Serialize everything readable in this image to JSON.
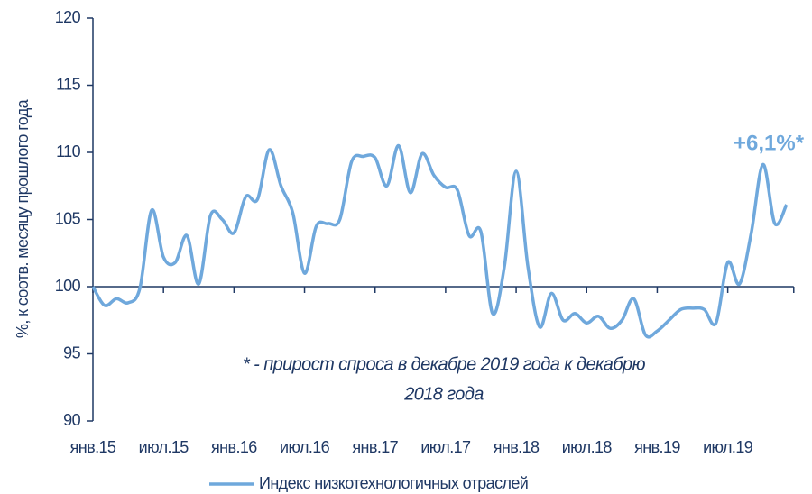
{
  "chart_data": {
    "type": "line",
    "y_label": "%, к соотв. месяцу прошлого года",
    "annotation": "+6,1%*",
    "footnote": [
      "* - прирост спроса в декабре 2019 года к декабрю",
      "2018 года"
    ],
    "categories": [
      "янв.15",
      null,
      null,
      null,
      null,
      null,
      "июл.15",
      null,
      null,
      null,
      null,
      null,
      "янв.16",
      null,
      null,
      null,
      null,
      null,
      "июл.16",
      null,
      null,
      null,
      null,
      null,
      "янв.17",
      null,
      null,
      null,
      null,
      null,
      "июл.17",
      null,
      null,
      null,
      null,
      null,
      "янв.18",
      null,
      null,
      null,
      null,
      null,
      "июл.18",
      null,
      null,
      null,
      null,
      null,
      "янв.19",
      null,
      null,
      null,
      null,
      null,
      "июл.19",
      null,
      null,
      null,
      null,
      null
    ],
    "series": [
      {
        "name": "Индекс низкотехнологичных отраслей",
        "color": "#6fa8dc",
        "values": [
          100,
          98.6,
          99.1,
          98.8,
          99.9,
          105.7,
          102.2,
          101.8,
          103.8,
          100.2,
          105.3,
          105.0,
          104.0,
          106.7,
          106.5,
          110.2,
          107.5,
          105.5,
          101.0,
          104.5,
          104.7,
          105.0,
          109.3,
          109.7,
          109.6,
          107.5,
          110.5,
          107.0,
          109.9,
          108.3,
          107.4,
          107.2,
          103.8,
          104.1,
          98.0,
          101.5,
          108.6,
          101.5,
          97.0,
          99.5,
          97.5,
          98.0,
          97.3,
          97.8,
          96.9,
          97.5,
          99.1,
          96.4,
          96.7,
          97.5,
          98.3,
          98.4,
          98.3,
          97.3,
          101.8,
          100.2,
          104.0,
          109.1,
          104.7,
          106.1
        ]
      }
    ],
    "ylim": [
      90,
      120
    ],
    "yticks": [
      90,
      95,
      100,
      105,
      110,
      115,
      120
    ],
    "x_axis_crosses": 100,
    "grid": false,
    "legend": "bottom"
  }
}
